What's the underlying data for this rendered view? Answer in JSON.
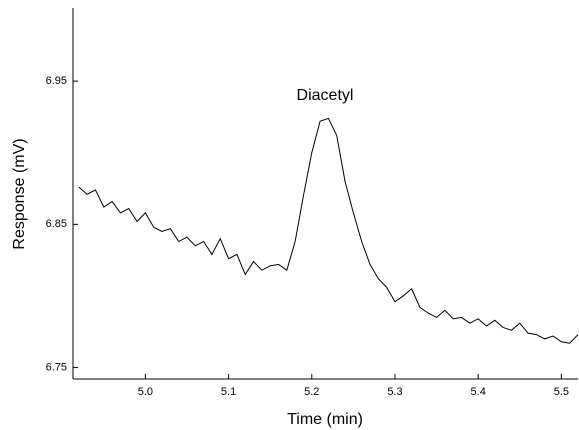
{
  "chart_data": {
    "type": "line",
    "x_label": "Time (min)",
    "y_label": "Response (mV)",
    "annotation": "Diacetyl",
    "xlim": [
      4.913,
      5.52
    ],
    "ylim": [
      6.742,
      7.0
    ],
    "xticks": [
      {
        "value": 5,
        "label": "5.0"
      },
      5.1,
      5.2,
      5.3,
      5.4,
      5.5
    ],
    "yticks": [
      6.75,
      6.85,
      6.95
    ],
    "x": [
      4.92,
      4.93,
      4.94,
      4.95,
      4.96,
      4.97,
      4.98,
      4.99,
      5.0,
      5.01,
      5.02,
      5.03,
      5.04,
      5.05,
      5.06,
      5.07,
      5.08,
      5.09,
      5.1,
      5.11,
      5.12,
      5.13,
      5.14,
      5.15,
      5.16,
      5.17,
      5.18,
      5.19,
      5.2,
      5.21,
      5.22,
      5.23,
      5.24,
      5.25,
      5.26,
      5.27,
      5.28,
      5.29,
      5.3,
      5.31,
      5.32,
      5.33,
      5.34,
      5.35,
      5.36,
      5.37,
      5.38,
      5.39,
      5.4,
      5.41,
      5.42,
      5.43,
      5.44,
      5.45,
      5.46,
      5.47,
      5.48,
      5.49,
      5.5,
      5.51,
      5.52
    ],
    "series": [
      {
        "color": "#000000",
        "values": [
          6.876,
          6.871,
          6.874,
          6.862,
          6.866,
          6.858,
          6.861,
          6.852,
          6.858,
          6.848,
          6.845,
          6.847,
          6.838,
          6.841,
          6.835,
          6.838,
          6.829,
          6.84,
          6.826,
          6.829,
          6.815,
          6.824,
          6.818,
          6.821,
          6.822,
          6.818,
          6.838,
          6.87,
          6.9,
          6.922,
          6.924,
          6.912,
          6.88,
          6.858,
          6.838,
          6.822,
          6.812,
          6.806,
          6.796,
          6.8,
          6.805,
          6.792,
          6.788,
          6.785,
          6.79,
          6.784,
          6.785,
          6.781,
          6.784,
          6.779,
          6.783,
          6.778,
          6.776,
          6.781,
          6.774,
          6.773,
          6.77,
          6.772,
          6.768,
          6.767,
          6.773
        ]
      }
    ]
  }
}
